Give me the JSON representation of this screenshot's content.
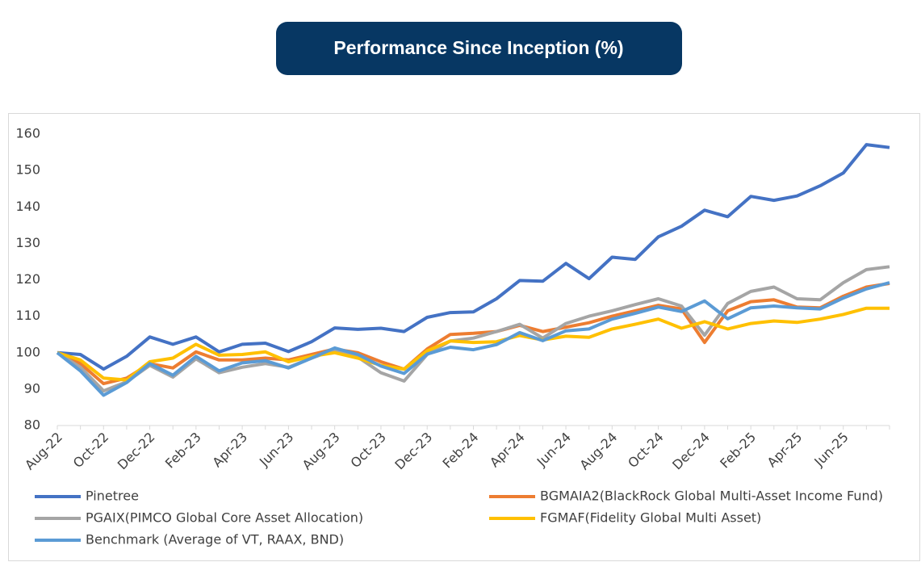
{
  "chart_data": {
    "type": "line",
    "title": "Performance Since Inception (%)",
    "categories": [
      "Aug-22",
      null,
      "Oct-22",
      null,
      "Dec-22",
      null,
      "Feb-23",
      null,
      "Apr-23",
      null,
      "Jun-23",
      null,
      "Aug-23",
      null,
      "Oct-23",
      null,
      "Dec-23",
      null,
      "Feb-24",
      null,
      "Apr-24",
      null,
      "Jun-24",
      null,
      "Aug-24",
      null,
      "Oct-24",
      null,
      "Dec-24",
      null,
      "Feb-25",
      null,
      "Apr-25",
      null,
      "Jun-25",
      null,
      null
    ],
    "series": [
      {
        "name": "Pinetree",
        "color": "#4472c4",
        "values": [
          100,
          99.5,
          95.5,
          99,
          104.3,
          102.3,
          104.3,
          100.2,
          102.3,
          102.6,
          100.3,
          103,
          106.8,
          106.4,
          106.7,
          105.8,
          109.7,
          111,
          111.2,
          114.8,
          119.8,
          119.6,
          124.5,
          120.3,
          126.2,
          125.6,
          131.8,
          134.7,
          139.1,
          137.3,
          142.9,
          141.8,
          143,
          145.8,
          149.3,
          157.1,
          156.3
        ]
      },
      {
        "name": "BGMAIA2(BlackRock Global Multi-Asset Income Fund)",
        "color": "#ed7d31",
        "values": [
          100,
          97,
          91.5,
          93,
          97,
          95.8,
          100.2,
          98,
          98,
          98.5,
          98,
          99.5,
          101,
          100,
          97.5,
          95.5,
          101,
          105,
          105.3,
          105.8,
          107.5,
          105.8,
          107,
          108.2,
          110,
          111.5,
          113,
          112,
          102.8,
          111.5,
          114,
          114.5,
          112.5,
          112.3,
          115.5,
          118,
          119
        ]
      },
      {
        "name": "PGAIX(PIMCO Global Core Asset Allocation)",
        "color": "#a5a5a5",
        "values": [
          100,
          96,
          89.5,
          92,
          96.5,
          93.3,
          98.3,
          94.5,
          96,
          97,
          96,
          98.5,
          100.8,
          98.8,
          94.5,
          92.2,
          99.5,
          103.2,
          104,
          105.8,
          107.8,
          104,
          108,
          110,
          111.5,
          113.2,
          114.8,
          112.8,
          104.8,
          113.5,
          116.8,
          118,
          114.8,
          114.5,
          119.2,
          122.8,
          123.6
        ]
      },
      {
        "name": "FGMAF(Fidelity Global Multi Asset)",
        "color": "#ffc000",
        "values": [
          100,
          98,
          93,
          92.5,
          97.5,
          98.5,
          102.3,
          99.3,
          99.5,
          100.2,
          97.5,
          99,
          100,
          98.5,
          96.5,
          95.5,
          100.5,
          103.2,
          102.8,
          103,
          104.7,
          103.5,
          104.5,
          104.2,
          106.5,
          107.8,
          109.2,
          106.7,
          108.5,
          106.5,
          108,
          108.7,
          108.3,
          109.2,
          110.5,
          112.2,
          112.2
        ]
      },
      {
        "name": "Benchmark (Average of VT, RAAX, BND)",
        "color": "#5b9bd5",
        "values": [
          100,
          95,
          88.3,
          91.8,
          97,
          93.8,
          99,
          95,
          97.2,
          97.8,
          95.8,
          98.5,
          101.3,
          99.5,
          96.3,
          94.3,
          99.6,
          101.5,
          100.8,
          102.2,
          105.5,
          103.3,
          106,
          106.5,
          109.2,
          110.8,
          112.5,
          111.3,
          114.2,
          109.3,
          112.3,
          112.8,
          112.3,
          112,
          115,
          117.5,
          119.2
        ]
      }
    ],
    "ylim": [
      80,
      160
    ],
    "yticks": [
      80,
      90,
      100,
      110,
      120,
      130,
      140,
      150,
      160
    ],
    "grid": false
  }
}
